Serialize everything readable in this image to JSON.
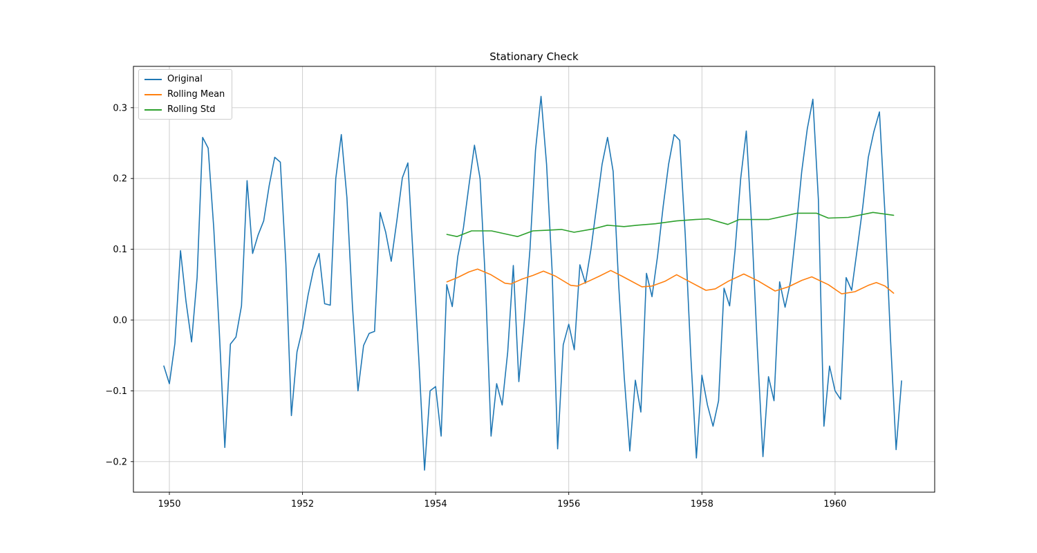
{
  "chart_data": {
    "type": "line",
    "title": "Stationary Check",
    "xlabel": "",
    "ylabel": "",
    "grid": true,
    "legend_position": "upper left",
    "legend_items": [
      "Original",
      "Rolling Mean",
      "Rolling Std"
    ],
    "xlim": [
      1949.46,
      1961.497
    ],
    "ylim": [
      -0.2432,
      0.3584
    ],
    "xticks": [
      1950,
      1952,
      1954,
      1956,
      1958,
      1960
    ],
    "yticks": [
      -0.2,
      -0.1,
      0.0,
      0.1,
      0.2,
      0.3
    ],
    "axis_color": "#000000",
    "grid_color": "#c9c9c9",
    "background_color": "#ffffff",
    "series": [
      {
        "name": "Original",
        "color": "#1f77b4",
        "x": [
          1949.917,
          1950.0,
          1950.083,
          1950.167,
          1950.25,
          1950.333,
          1950.417,
          1950.5,
          1950.583,
          1950.667,
          1950.75,
          1950.833,
          1950.917,
          1951.0,
          1951.083,
          1951.167,
          1951.25,
          1951.333,
          1951.417,
          1951.5,
          1951.583,
          1951.667,
          1951.75,
          1951.833,
          1951.917,
          1952.0,
          1952.083,
          1952.167,
          1952.25,
          1952.333,
          1952.417,
          1952.5,
          1952.583,
          1952.667,
          1952.75,
          1952.833,
          1952.917,
          1953.0,
          1953.083,
          1953.167,
          1953.25,
          1953.333,
          1953.417,
          1953.5,
          1953.583,
          1953.667,
          1953.75,
          1953.833,
          1953.917,
          1954.0,
          1954.083,
          1954.167,
          1954.25,
          1954.333,
          1954.417,
          1954.5,
          1954.583,
          1954.667,
          1954.75,
          1954.833,
          1954.917,
          1955.0,
          1955.083,
          1955.167,
          1955.25,
          1955.333,
          1955.417,
          1955.5,
          1955.583,
          1955.667,
          1955.75,
          1955.833,
          1955.917,
          1956.0,
          1956.083,
          1956.167,
          1956.25,
          1956.333,
          1956.417,
          1956.5,
          1956.583,
          1956.667,
          1956.75,
          1956.833,
          1956.917,
          1957.0,
          1957.083,
          1957.167,
          1957.25,
          1957.333,
          1957.417,
          1957.5,
          1957.583,
          1957.667,
          1957.75,
          1957.833,
          1957.917,
          1958.0,
          1958.083,
          1958.167,
          1958.25,
          1958.333,
          1958.417,
          1958.5,
          1958.583,
          1958.667,
          1958.75,
          1958.833,
          1958.917,
          1959.0,
          1959.083,
          1959.167,
          1959.25,
          1959.333,
          1959.417,
          1959.5,
          1959.583,
          1959.667,
          1959.75,
          1959.833,
          1959.917,
          1960.0,
          1960.083,
          1960.167,
          1960.25,
          1960.333,
          1960.417,
          1960.5,
          1960.583,
          1960.667,
          1960.75,
          1960.833,
          1960.917,
          1961.0
        ],
        "y": [
          -0.065,
          -0.09,
          -0.033,
          0.098,
          0.026,
          -0.031,
          0.06,
          0.258,
          0.243,
          0.13,
          -0.016,
          -0.18,
          -0.034,
          -0.024,
          0.02,
          0.197,
          0.094,
          0.12,
          0.14,
          0.19,
          0.23,
          0.223,
          0.08,
          -0.135,
          -0.045,
          -0.012,
          0.035,
          0.072,
          0.094,
          0.023,
          0.021,
          0.2,
          0.262,
          0.173,
          0.02,
          -0.1,
          -0.036,
          -0.019,
          -0.016,
          0.152,
          0.124,
          0.083,
          0.14,
          0.201,
          0.222,
          0.08,
          -0.06,
          -0.212,
          -0.1,
          -0.094,
          -0.164,
          0.05,
          0.019,
          0.09,
          0.13,
          0.19,
          0.247,
          0.2,
          0.05,
          -0.164,
          -0.09,
          -0.12,
          -0.045,
          0.077,
          -0.087,
          0.0,
          0.1,
          0.24,
          0.316,
          0.22,
          0.07,
          -0.182,
          -0.035,
          -0.006,
          -0.042,
          0.078,
          0.052,
          0.1,
          0.16,
          0.22,
          0.258,
          0.21,
          0.05,
          -0.08,
          -0.185,
          -0.085,
          -0.13,
          0.066,
          0.033,
          0.09,
          0.16,
          0.22,
          0.262,
          0.254,
          0.12,
          -0.05,
          -0.195,
          -0.078,
          -0.12,
          -0.15,
          -0.114,
          0.045,
          0.02,
          0.1,
          0.2,
          0.267,
          0.13,
          -0.04,
          -0.193,
          -0.08,
          -0.114,
          0.054,
          0.018,
          0.055,
          0.13,
          0.21,
          0.27,
          0.312,
          0.17,
          -0.15,
          -0.065,
          -0.1,
          -0.112,
          0.06,
          0.042,
          0.1,
          0.16,
          0.23,
          0.266,
          0.294,
          0.15,
          -0.027,
          -0.183,
          -0.086
        ]
      },
      {
        "name": "Rolling Mean",
        "color": "#ff7f0e",
        "x": [
          1954.17,
          1954.33,
          1954.5,
          1954.63,
          1954.83,
          1955.04,
          1955.13,
          1955.3,
          1955.46,
          1955.62,
          1955.8,
          1956.03,
          1956.13,
          1956.3,
          1956.46,
          1956.63,
          1956.8,
          1957.1,
          1957.25,
          1957.45,
          1957.62,
          1957.8,
          1958.06,
          1958.2,
          1958.4,
          1958.63,
          1958.85,
          1959.1,
          1959.3,
          1959.5,
          1959.65,
          1959.9,
          1960.1,
          1960.3,
          1960.5,
          1960.62,
          1960.75,
          1960.88
        ],
        "y": [
          0.054,
          0.06,
          0.068,
          0.072,
          0.064,
          0.052,
          0.051,
          0.058,
          0.063,
          0.069,
          0.062,
          0.049,
          0.048,
          0.055,
          0.062,
          0.07,
          0.062,
          0.047,
          0.048,
          0.055,
          0.064,
          0.055,
          0.042,
          0.044,
          0.055,
          0.065,
          0.055,
          0.041,
          0.047,
          0.056,
          0.061,
          0.05,
          0.037,
          0.04,
          0.049,
          0.053,
          0.048,
          0.038
        ]
      },
      {
        "name": "Rolling Std",
        "color": "#2ca02c",
        "x": [
          1954.17,
          1954.32,
          1954.54,
          1954.84,
          1955.13,
          1955.23,
          1955.46,
          1955.7,
          1955.89,
          1956.08,
          1956.38,
          1956.58,
          1956.83,
          1957.03,
          1957.3,
          1957.62,
          1957.9,
          1958.1,
          1958.39,
          1958.56,
          1959.0,
          1959.43,
          1959.72,
          1959.9,
          1960.2,
          1960.57,
          1960.88
        ],
        "y": [
          0.121,
          0.118,
          0.126,
          0.126,
          0.12,
          0.118,
          0.126,
          0.127,
          0.128,
          0.124,
          0.129,
          0.134,
          0.132,
          0.134,
          0.136,
          0.14,
          0.142,
          0.143,
          0.135,
          0.142,
          0.142,
          0.151,
          0.151,
          0.144,
          0.145,
          0.152,
          0.148
        ]
      }
    ]
  }
}
